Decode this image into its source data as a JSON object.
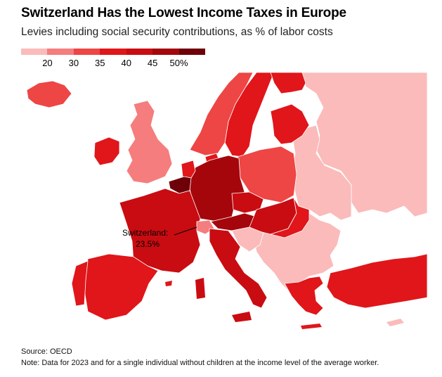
{
  "header": {
    "title": "Switzerland Has the Lowest Income Taxes in Europe",
    "subtitle": "Levies including social security contributions, as % of labor costs"
  },
  "legend": {
    "ticks": [
      "20",
      "30",
      "35",
      "40",
      "45",
      "50%"
    ],
    "colors": [
      "#fbbbbb",
      "#f57d7d",
      "#ee4545",
      "#e0161a",
      "#c90c12",
      "#a4060c",
      "#6d0008"
    ]
  },
  "callout": {
    "country": "Switzerland:",
    "value": "23.5%"
  },
  "chart_data": {
    "type": "choropleth",
    "unit": "% of labor costs",
    "bins": [
      {
        "range": "<20",
        "color": "#fbbbbb"
      },
      {
        "range": "20-30",
        "color": "#f57d7d"
      },
      {
        "range": "30-35",
        "color": "#ee4545"
      },
      {
        "range": "35-40",
        "color": "#e0161a"
      },
      {
        "range": "40-45",
        "color": "#c90c12"
      },
      {
        "range": "45-50",
        "color": "#a4060c"
      },
      {
        "range": ">50",
        "color": "#6d0008"
      }
    ],
    "highlighted": {
      "name": "Switzerland",
      "value": 23.5
    }
  },
  "footer": {
    "source": "Source: OECD",
    "note": "Note: Data for 2023 and for a single individual without children at the income level of the average worker."
  }
}
